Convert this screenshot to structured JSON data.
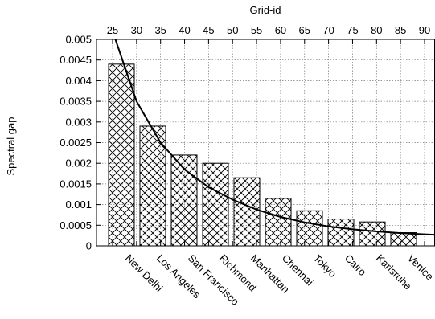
{
  "chart_data": {
    "type": "bar",
    "ylabel": "Spectral gap",
    "x2label": "Grid-id",
    "ylim": [
      0,
      0.005
    ],
    "yticks": [
      "0",
      "0.0005",
      "0.001",
      "0.0015",
      "0.002",
      "0.0025",
      "0.003",
      "0.0035",
      "0.004",
      "0.0045",
      "0.005"
    ],
    "x2ticks": [
      "25",
      "30",
      "35",
      "40",
      "45",
      "50",
      "55",
      "60",
      "65",
      "70",
      "75",
      "80",
      "85",
      "90"
    ],
    "x2range": [
      25,
      90
    ],
    "grid": true,
    "bar_pattern": "crosshatch",
    "categories": [
      "New Delhi",
      "Los Angeles",
      "San Francisco",
      "Richmond",
      "Manhattan",
      "Chennai",
      "Tokyo",
      "Cairo",
      "Karlsruhe",
      "Venice"
    ],
    "values": [
      0.0044,
      0.0029,
      0.0022,
      0.002,
      0.00165,
      0.00115,
      0.00085,
      0.00065,
      0.00058,
      0.00032
    ],
    "curve": {
      "x": [
        25,
        30,
        35,
        40,
        45,
        50,
        55,
        60,
        65,
        70,
        75,
        80,
        85,
        90
      ],
      "y": [
        0.0052,
        0.0035,
        0.0025,
        0.00185,
        0.00142,
        0.00112,
        0.00088,
        0.0007,
        0.00057,
        0.00047,
        0.0004,
        0.00035,
        0.00031,
        0.00028
      ]
    }
  }
}
